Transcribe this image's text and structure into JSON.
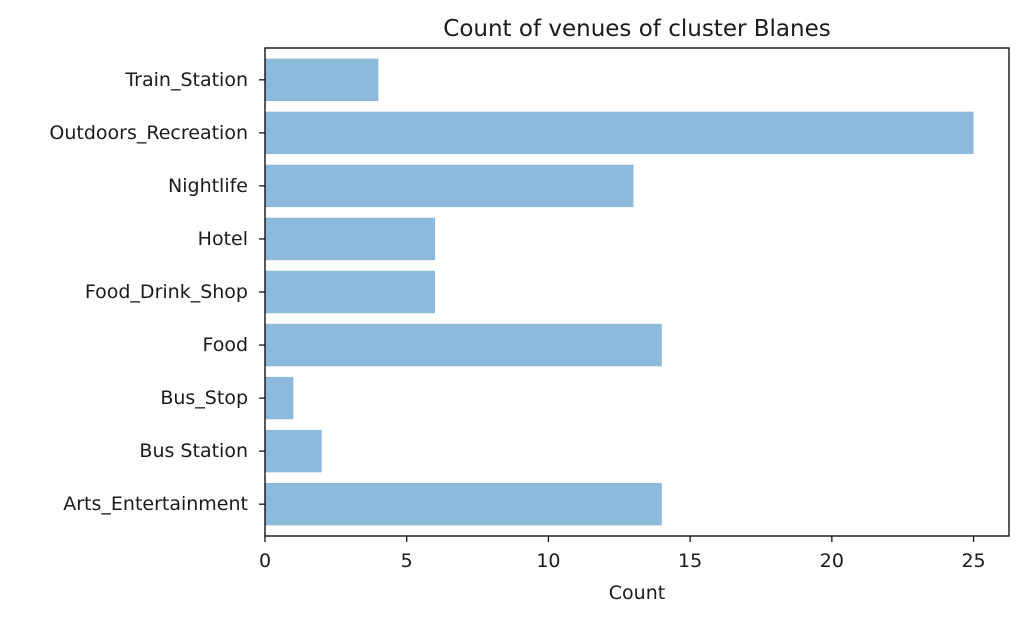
{
  "chart_data": {
    "type": "bar",
    "orientation": "horizontal",
    "title": "Count of venues of cluster Blanes",
    "xlabel": "Count",
    "ylabel": "",
    "categories": [
      "Arts_Entertainment",
      "Bus Station",
      "Bus_Stop",
      "Food",
      "Food_Drink_Shop",
      "Hotel",
      "Nightlife",
      "Outdoors_Recreation",
      "Train_Station"
    ],
    "values": [
      14,
      2,
      1,
      14,
      6,
      6,
      13,
      25,
      4
    ],
    "xlim": [
      0,
      26.25
    ],
    "xticks": [
      0,
      5,
      10,
      15,
      20,
      25
    ],
    "grid": false,
    "bar_color": "#8db9da"
  }
}
